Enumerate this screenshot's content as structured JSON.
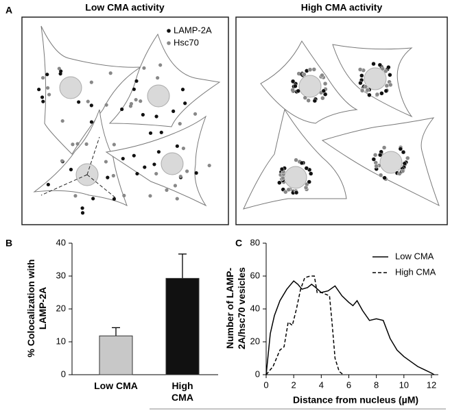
{
  "panel_a": {
    "label": "A",
    "left_title": "Low CMA activity",
    "right_title": "High CMA activity",
    "legend": [
      {
        "name": "LAMP-2A",
        "color": "#111111"
      },
      {
        "name": "Hsc70",
        "color": "#888888"
      }
    ]
  },
  "chart_data": [
    {
      "type": "bar",
      "panel_label": "B",
      "ylabel": "% Colocalization with LAMP-2A",
      "categories": [
        "Low CMA",
        "High CMA"
      ],
      "values": [
        11.8,
        29.3
      ],
      "errors": [
        2.5,
        7.4
      ],
      "colors": [
        "#c8c8c8",
        "#111111"
      ],
      "ylim": [
        0,
        40
      ],
      "yticks": [
        0,
        10,
        20,
        30,
        40
      ]
    },
    {
      "type": "line",
      "panel_label": "C",
      "xlabel": "Distance from nucleus (µM)",
      "ylabel": "Number of LAMP-2A/hsc70 vesicles",
      "xlim": [
        0,
        12.5
      ],
      "xticks": [
        0,
        2,
        4,
        6,
        8,
        10,
        12
      ],
      "ylim": [
        0,
        80
      ],
      "yticks": [
        0,
        20,
        40,
        60,
        80
      ],
      "legend": "upper right",
      "series": [
        {
          "name": "Low CMA",
          "color": "#000000",
          "dashed": false,
          "x": [
            0,
            0.3,
            0.6,
            1,
            1.5,
            2,
            2.3,
            2.6,
            3,
            3.3,
            3.6,
            4,
            4.5,
            5,
            5.5,
            6,
            6.3,
            6.6,
            7,
            7.5,
            8,
            8.5,
            9,
            9.5,
            10,
            10.5,
            11,
            11.5,
            12,
            12.2
          ],
          "values": [
            0,
            25,
            36,
            45,
            52,
            57,
            55,
            52,
            53,
            55,
            53,
            50,
            51,
            54,
            48,
            44,
            42,
            45,
            39,
            33,
            34,
            33,
            22,
            15,
            11,
            8,
            5,
            3,
            1,
            0
          ]
        },
        {
          "name": "High CMA",
          "color": "#000000",
          "dashed": true,
          "x": [
            0,
            0.5,
            1,
            1.3,
            1.6,
            1.9,
            2.2,
            2.5,
            2.8,
            3.2,
            3.5,
            3.7,
            4,
            4.3,
            4.6,
            4.8,
            5,
            5.3,
            5.6
          ],
          "values": [
            0,
            5,
            15,
            17,
            32,
            30,
            40,
            52,
            59,
            60,
            60,
            50,
            50,
            49,
            48,
            30,
            10,
            2,
            0
          ]
        }
      ]
    }
  ]
}
